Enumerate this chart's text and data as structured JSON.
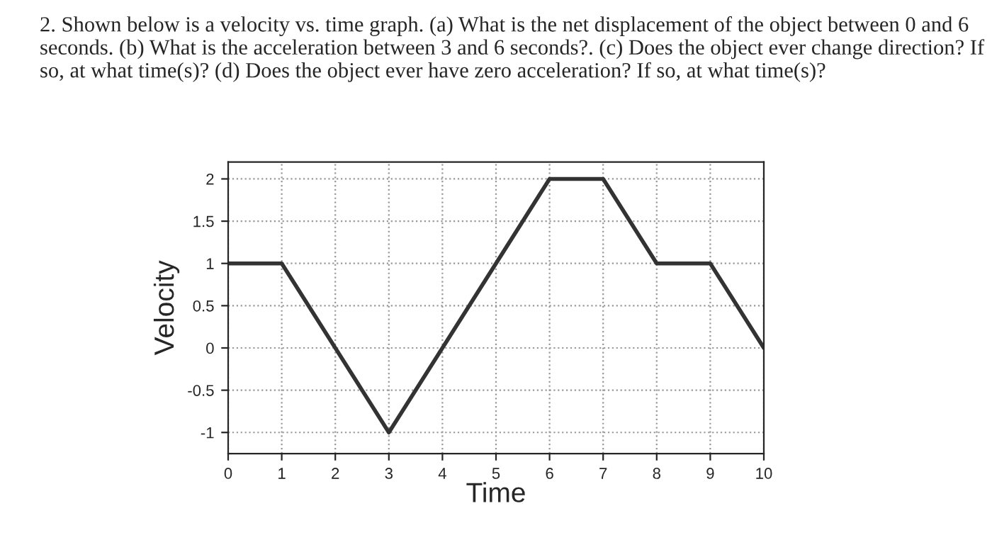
{
  "chart_data": {
    "type": "line",
    "title": "2. Shown below is a velocity vs. time graph. (a) What is the net displacement of the object between 0 and 6 seconds. (b) What is the acceleration between 3 and 6 seconds?. (c) Does the object ever change direction? If so, at what time(s)? (d) Does the object ever have zero acceleration? If so, at what time(s)?",
    "xlabel": "Time",
    "ylabel": "Velocity",
    "series": [
      {
        "color": "#333333",
        "x": [
          0,
          1,
          3,
          6,
          7,
          8,
          9,
          10
        ],
        "values": [
          1,
          1,
          -1,
          2,
          2,
          1,
          1,
          0
        ]
      }
    ],
    "xlim": [
      0,
      10
    ],
    "xticks": [
      0,
      1,
      2,
      3,
      4,
      5,
      6,
      7,
      8,
      9,
      10
    ],
    "ylim": [
      -1.25,
      2.2
    ],
    "yticks": [
      -1,
      -0.5,
      0,
      0.5,
      1,
      1.5,
      2
    ],
    "grid": true,
    "marker": "none",
    "line_style": "solid"
  }
}
